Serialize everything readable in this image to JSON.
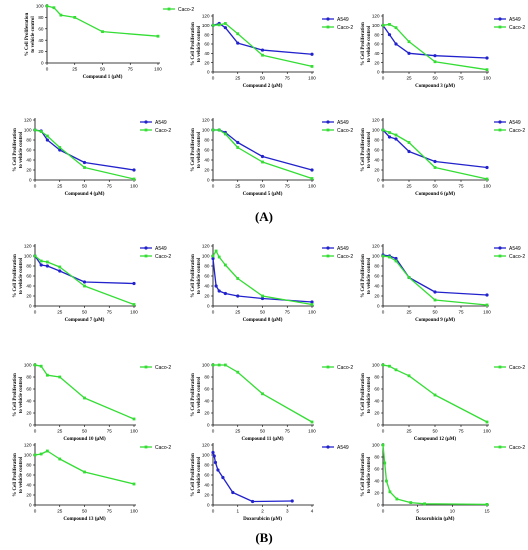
{
  "figure": {
    "panel_labels": [
      "(A)",
      "(B)"
    ],
    "colors": {
      "A549": "#2222cc",
      "Caco-2": "#33dd33"
    }
  },
  "chart_data": [
    {
      "type": "line",
      "title": "",
      "xlabel": "Compound 1 (µM)",
      "ylabel": "% Cell Proliferation\nto vehicle control",
      "xlim": [
        0,
        100
      ],
      "ylim": [
        0,
        100
      ],
      "xticks": [
        0,
        25,
        50,
        75,
        100
      ],
      "yticks": [
        0,
        20,
        40,
        60,
        80,
        100
      ],
      "legend": "top-right",
      "series": [
        {
          "name": "Caco-2",
          "x": [
            0,
            6.25,
            12.5,
            25,
            50,
            100
          ],
          "y": [
            100,
            97,
            84,
            80,
            55,
            47
          ]
        }
      ]
    },
    {
      "type": "line",
      "title": "",
      "xlabel": "Compound 2 (µM)",
      "ylabel": "% Cell Proliferation\nto vehicle control",
      "xlim": [
        0,
        100
      ],
      "ylim": [
        0,
        120
      ],
      "xticks": [
        0,
        25,
        50,
        75,
        100
      ],
      "yticks": [
        0,
        20,
        40,
        60,
        80,
        100,
        120
      ],
      "legend": "top-right",
      "series": [
        {
          "name": "A549",
          "x": [
            0,
            6.25,
            12.5,
            25,
            50,
            100
          ],
          "y": [
            100,
            104,
            95,
            62,
            47,
            38
          ]
        },
        {
          "name": "Caco-2",
          "x": [
            0,
            6.25,
            12.5,
            25,
            50,
            100
          ],
          "y": [
            100,
            101,
            104,
            82,
            36,
            12
          ]
        }
      ]
    },
    {
      "type": "line",
      "title": "",
      "xlabel": "Compound 3 (µM)",
      "ylabel": "% Cell Proliferation\nto vehicle control",
      "xlim": [
        0,
        100
      ],
      "ylim": [
        0,
        120
      ],
      "xticks": [
        0,
        25,
        50,
        75,
        100
      ],
      "yticks": [
        0,
        20,
        40,
        60,
        80,
        100,
        120
      ],
      "legend": "top-right",
      "series": [
        {
          "name": "A549",
          "x": [
            0,
            6.25,
            12.5,
            25,
            50,
            100
          ],
          "y": [
            100,
            80,
            60,
            40,
            35,
            30
          ]
        },
        {
          "name": "Caco-2",
          "x": [
            0,
            6.25,
            12.5,
            25,
            50,
            100
          ],
          "y": [
            100,
            102,
            95,
            65,
            22,
            5
          ]
        }
      ]
    },
    {
      "type": "line",
      "title": "",
      "xlabel": "Compound 4 (µM)",
      "ylabel": "% Cell Proliferation\nto vehicle control",
      "xlim": [
        0,
        100
      ],
      "ylim": [
        0,
        120
      ],
      "xticks": [
        0,
        25,
        50,
        75,
        100
      ],
      "yticks": [
        0,
        20,
        40,
        60,
        80,
        100,
        120
      ],
      "legend": "top-right",
      "series": [
        {
          "name": "A549",
          "x": [
            0,
            6.25,
            12.5,
            25,
            50,
            100
          ],
          "y": [
            100,
            98,
            80,
            60,
            35,
            20
          ]
        },
        {
          "name": "Caco-2",
          "x": [
            0,
            6.25,
            12.5,
            25,
            50,
            100
          ],
          "y": [
            100,
            97,
            88,
            65,
            25,
            2
          ]
        }
      ]
    },
    {
      "type": "line",
      "title": "",
      "xlabel": "Compound 5 (µM)",
      "ylabel": "% Cell Proliferation\nto vehicle control",
      "xlim": [
        0,
        100
      ],
      "ylim": [
        0,
        120
      ],
      "xticks": [
        0,
        25,
        50,
        75,
        100
      ],
      "yticks": [
        0,
        20,
        40,
        60,
        80,
        100,
        120
      ],
      "legend": "top-right",
      "series": [
        {
          "name": "A549",
          "x": [
            0,
            6.25,
            12.5,
            25,
            50,
            100
          ],
          "y": [
            100,
            100,
            95,
            75,
            47,
            20
          ]
        },
        {
          "name": "Caco-2",
          "x": [
            0,
            6.25,
            12.5,
            25,
            50,
            100
          ],
          "y": [
            100,
            100,
            92,
            65,
            36,
            3
          ]
        }
      ]
    },
    {
      "type": "line",
      "title": "",
      "xlabel": "Compound 6 (µM)",
      "ylabel": "% Cell Proliferation\nto vehicle control",
      "xlim": [
        0,
        100
      ],
      "ylim": [
        0,
        120
      ],
      "xticks": [
        0,
        25,
        50,
        75,
        100
      ],
      "yticks": [
        0,
        20,
        40,
        60,
        80,
        100,
        120
      ],
      "legend": "top-right",
      "series": [
        {
          "name": "A549",
          "x": [
            0,
            6.25,
            12.5,
            25,
            50,
            100
          ],
          "y": [
            100,
            86,
            82,
            57,
            37,
            25
          ]
        },
        {
          "name": "Caco-2",
          "x": [
            0,
            6.25,
            12.5,
            25,
            50,
            100
          ],
          "y": [
            100,
            95,
            90,
            75,
            25,
            2
          ]
        }
      ]
    },
    {
      "type": "line",
      "title": "",
      "xlabel": "Compound 7 (µM)",
      "ylabel": "% Cell Proliferation\nto vehicle control",
      "xlim": [
        0,
        100
      ],
      "ylim": [
        0,
        120
      ],
      "xticks": [
        0,
        25,
        50,
        75,
        100
      ],
      "yticks": [
        0,
        20,
        40,
        60,
        80,
        100,
        120
      ],
      "legend": "top-right",
      "series": [
        {
          "name": "A549",
          "x": [
            0,
            6.25,
            12.5,
            25,
            50,
            100
          ],
          "y": [
            100,
            82,
            80,
            70,
            48,
            45
          ]
        },
        {
          "name": "Caco-2",
          "x": [
            0,
            6.25,
            12.5,
            25,
            50,
            100
          ],
          "y": [
            100,
            90,
            88,
            78,
            40,
            3
          ]
        }
      ]
    },
    {
      "type": "line",
      "title": "",
      "xlabel": "Compound 8 (µM)",
      "ylabel": "% Cell Proliferation\nto vehicle control",
      "xlim": [
        0,
        100
      ],
      "ylim": [
        0,
        120
      ],
      "xticks": [
        0,
        25,
        50,
        75,
        100
      ],
      "yticks": [
        0,
        20,
        40,
        60,
        80,
        100,
        120
      ],
      "legend": "top-right",
      "series": [
        {
          "name": "A549",
          "x": [
            0,
            3.125,
            6.25,
            12.5,
            25,
            50,
            100
          ],
          "y": [
            95,
            40,
            30,
            25,
            20,
            15,
            8
          ]
        },
        {
          "name": "Caco-2",
          "x": [
            0,
            3.125,
            6.25,
            12.5,
            25,
            50,
            100
          ],
          "y": [
            100,
            110,
            98,
            82,
            55,
            20,
            3
          ]
        }
      ]
    },
    {
      "type": "line",
      "title": "",
      "xlabel": "Compound 9 (µM)",
      "ylabel": "% Cell Proliferation\nto vehicle control",
      "xlim": [
        0,
        100
      ],
      "ylim": [
        0,
        120
      ],
      "xticks": [
        0,
        25,
        50,
        75,
        100
      ],
      "yticks": [
        0,
        20,
        40,
        60,
        80,
        100,
        120
      ],
      "legend": "top-right",
      "series": [
        {
          "name": "A549",
          "x": [
            0,
            6.25,
            12.5,
            25,
            50,
            100
          ],
          "y": [
            102,
            100,
            95,
            57,
            28,
            22
          ]
        },
        {
          "name": "Caco-2",
          "x": [
            0,
            6.25,
            12.5,
            25,
            50,
            100
          ],
          "y": [
            100,
            98,
            90,
            57,
            12,
            2
          ]
        }
      ]
    },
    {
      "type": "line",
      "title": "",
      "xlabel": "Compound 10 (µM)",
      "ylabel": "% Cell Proliferation\nto vehicle control",
      "xlim": [
        0,
        100
      ],
      "ylim": [
        0,
        100
      ],
      "xticks": [
        0,
        25,
        50,
        75,
        100
      ],
      "yticks": [
        0,
        20,
        40,
        60,
        80,
        100
      ],
      "legend": "top-right",
      "series": [
        {
          "name": "Caco-2",
          "x": [
            0,
            6.25,
            12.5,
            25,
            50,
            100
          ],
          "y": [
            100,
            98,
            83,
            80,
            45,
            10
          ]
        }
      ]
    },
    {
      "type": "line",
      "title": "",
      "xlabel": "Compound 11 (µM)",
      "ylabel": "% Cell Proliferation\nto vehicle control",
      "xlim": [
        0,
        100
      ],
      "ylim": [
        0,
        100
      ],
      "xticks": [
        0,
        25,
        50,
        75,
        100
      ],
      "yticks": [
        0,
        20,
        40,
        60,
        80,
        100
      ],
      "legend": "top-right",
      "series": [
        {
          "name": "Caco-2",
          "x": [
            0,
            6.25,
            12.5,
            25,
            50,
            100
          ],
          "y": [
            100,
            100,
            100,
            88,
            52,
            5
          ]
        }
      ]
    },
    {
      "type": "line",
      "title": "",
      "xlabel": "Compound 12 (µM)",
      "ylabel": "% Cell Proliferation\nto vehicle control",
      "xlim": [
        0,
        100
      ],
      "ylim": [
        0,
        100
      ],
      "xticks": [
        0,
        25,
        50,
        75,
        100
      ],
      "yticks": [
        0,
        20,
        40,
        60,
        80,
        100
      ],
      "legend": "top-right",
      "series": [
        {
          "name": "Caco-2",
          "x": [
            0,
            6.25,
            12.5,
            25,
            50,
            100
          ],
          "y": [
            100,
            98,
            92,
            82,
            50,
            5
          ]
        }
      ]
    },
    {
      "type": "line",
      "title": "",
      "xlabel": "Compound 13 (µM)",
      "ylabel": "% Cell Proliferation\nto vehicle control",
      "xlim": [
        0,
        100
      ],
      "ylim": [
        0,
        120
      ],
      "xticks": [
        0,
        25,
        50,
        75,
        100
      ],
      "yticks": [
        0,
        20,
        40,
        60,
        80,
        100,
        120
      ],
      "legend": "top-right",
      "series": [
        {
          "name": "Caco-2",
          "x": [
            0,
            6.25,
            12.5,
            25,
            50,
            100
          ],
          "y": [
            100,
            102,
            108,
            92,
            66,
            42
          ]
        }
      ]
    },
    {
      "type": "line",
      "title": "",
      "xlabel": "Doxorubicin (µM)",
      "ylabel": "% Cell Proliferation\nto vehicle control",
      "xlim": [
        0,
        4
      ],
      "ylim": [
        0,
        120
      ],
      "xticks": [
        0,
        1,
        2,
        3,
        4
      ],
      "yticks": [
        0,
        20,
        40,
        60,
        80,
        100,
        120
      ],
      "legend": "top-right",
      "series": [
        {
          "name": "A549",
          "x": [
            0,
            0.05,
            0.1,
            0.2,
            0.4,
            0.8,
            1.6,
            3.2
          ],
          "y": [
            105,
            98,
            85,
            70,
            55,
            25,
            7,
            8
          ]
        }
      ]
    },
    {
      "type": "line",
      "title": "",
      "xlabel": "Doxorubicin (µM)",
      "ylabel": "% Cell Proliferation\nto vehicle control",
      "xlim": [
        0,
        15
      ],
      "ylim": [
        0,
        100
      ],
      "xticks": [
        0,
        5,
        10,
        15
      ],
      "yticks": [
        0,
        20,
        40,
        60,
        80,
        100
      ],
      "legend": "top-right",
      "series": [
        {
          "name": "Caco-2",
          "x": [
            0,
            0.25,
            0.5,
            1,
            2,
            4,
            6,
            15
          ],
          "y": [
            100,
            70,
            40,
            22,
            10,
            4,
            2,
            1
          ]
        }
      ]
    }
  ]
}
